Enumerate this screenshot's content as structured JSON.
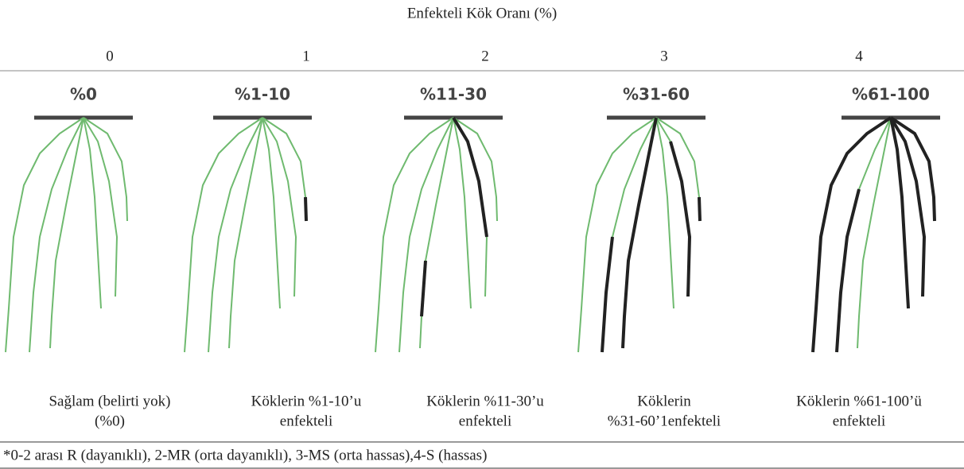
{
  "header": {
    "title": "Enfekteli Kök Oranı (%)"
  },
  "columns": [
    {
      "score": "0",
      "label": "%0",
      "description": [
        "Sağlam (belirti yok)",
        "(%0)"
      ]
    },
    {
      "score": "1",
      "label": "%1-10",
      "description": [
        "Köklerin %1-10’u",
        "enfekteli"
      ]
    },
    {
      "score": "2",
      "label": "%11-30",
      "description": [
        "Köklerin %11-30’u",
        "enfekteli"
      ]
    },
    {
      "score": "3",
      "label": "%31-60",
      "description": [
        "Köklerin",
        "%31-60’1enfekteli"
      ]
    },
    {
      "score": "4",
      "label": "%61-100",
      "description": [
        "Köklerin %61-100’ü",
        "enfekteli"
      ]
    }
  ],
  "footnote": "*0-2 arası R (dayanıklı), 2-MR (orta dayanıklı), 3-MS (orta hassas),4-S (hassas)"
}
